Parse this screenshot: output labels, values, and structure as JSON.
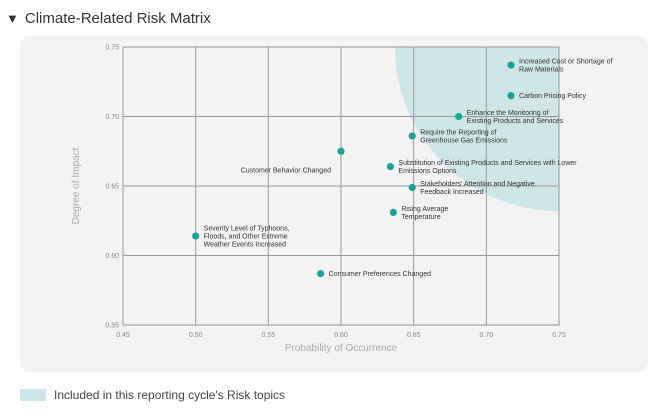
{
  "header": {
    "toggle_icon": "triangle-down-icon",
    "title": "Climate-Related Risk Matrix"
  },
  "legend": {
    "label": "Included in this reporting cycle's Risk topics",
    "color": "#cfe6e6"
  },
  "chart_data": {
    "type": "scatter",
    "title": "Climate-Related Risk Matrix",
    "xlabel": "Probability of Occurrence",
    "ylabel": "Degree of Impact",
    "xlim": [
      0.45,
      0.75
    ],
    "ylim": [
      0.55,
      0.75
    ],
    "xticks": [
      "0.45",
      "0.50",
      "0.55",
      "0.60",
      "0.65",
      "0.70",
      "0.75"
    ],
    "yticks": [
      "0.55",
      "0.60",
      "0.65",
      "0.70",
      "0.75"
    ],
    "grid": true,
    "point_color": "#1aa394",
    "region_color": "#cfe6e6",
    "points": [
      {
        "x": 0.717,
        "y": 0.737,
        "label": [
          "Increased Cost or Shortage of",
          "Raw Materials"
        ]
      },
      {
        "x": 0.717,
        "y": 0.715,
        "label": [
          "Carbon Pricing Policy"
        ]
      },
      {
        "x": 0.681,
        "y": 0.7,
        "label": [
          "Enhance the Monitoring of",
          "Existing Products and Services"
        ]
      },
      {
        "x": 0.649,
        "y": 0.686,
        "label": [
          "Require the Reporting of",
          "Greenhouse Gas Emissions"
        ]
      },
      {
        "x": 0.6,
        "y": 0.675,
        "label": [
          "Customer Behavior Changed"
        ]
      },
      {
        "x": 0.634,
        "y": 0.664,
        "label": [
          "Substitution of Existing Products and Services with Lower",
          "Emissions Options"
        ]
      },
      {
        "x": 0.649,
        "y": 0.649,
        "label": [
          "Stakeholders' Attention and Negative",
          "Feedback Increased"
        ]
      },
      {
        "x": 0.636,
        "y": 0.631,
        "label": [
          "Rising Average",
          "Temperature"
        ]
      },
      {
        "x": 0.5,
        "y": 0.614,
        "label": [
          "Severity Level of Typhoons,",
          "Floods, and Other Extreme",
          "Weather Events Increased"
        ]
      },
      {
        "x": 0.586,
        "y": 0.587,
        "label": [
          "Consumer Preferences Changed"
        ]
      }
    ]
  }
}
